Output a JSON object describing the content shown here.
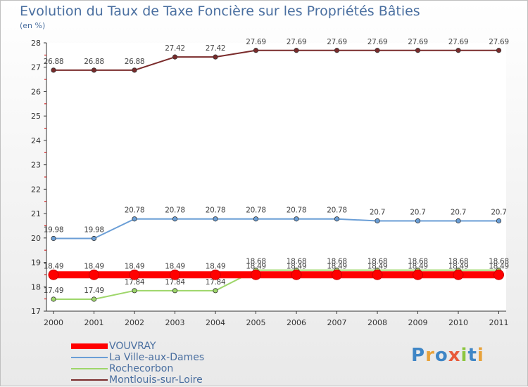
{
  "chart_data": {
    "type": "line",
    "title": "Evolution du Taux de Taxe Foncière sur les Propriétés Bâties",
    "unit_label": "(en %)",
    "x": [
      "2000",
      "2001",
      "2002",
      "2003",
      "2004",
      "2005",
      "2006",
      "2007",
      "2008",
      "2009",
      "2010",
      "2011"
    ],
    "ylim": [
      17,
      28
    ],
    "yticks": [
      17,
      18,
      19,
      20,
      21,
      22,
      23,
      24,
      25,
      26,
      27,
      28
    ],
    "series": [
      {
        "name": "Montlouis-sur-Loire",
        "color": "#7a2b2b",
        "values": [
          26.88,
          26.88,
          26.88,
          27.42,
          27.42,
          27.69,
          27.69,
          27.69,
          27.69,
          27.69,
          27.69,
          27.69
        ],
        "labels": [
          "26.88",
          "26.88",
          "26.88",
          "27.42",
          "27.42",
          "27.69",
          "27.69",
          "27.69",
          "27.69",
          "27.69",
          "27.69",
          "27.69"
        ]
      },
      {
        "name": "La Ville-aux-Dames",
        "color": "#6a9ed6",
        "values": [
          19.98,
          19.98,
          20.78,
          20.78,
          20.78,
          20.78,
          20.78,
          20.78,
          20.7,
          20.7,
          20.7,
          20.7
        ],
        "labels": [
          "19.98",
          "19.98",
          "20.78",
          "20.78",
          "20.78",
          "20.78",
          "20.78",
          "20.78",
          "20.7",
          "20.7",
          "20.7",
          "20.7"
        ]
      },
      {
        "name": "Rochecorbon",
        "color": "#9ed66a",
        "values": [
          17.49,
          17.49,
          17.84,
          17.84,
          17.84,
          18.68,
          18.68,
          18.68,
          18.68,
          18.68,
          18.68,
          18.68
        ],
        "labels": [
          "17.49",
          "17.49",
          "17.84",
          "17.84",
          "17.84",
          "18.68",
          "18.68",
          "18.68",
          "18.68",
          "18.68",
          "18.68",
          "18.68"
        ]
      },
      {
        "name": "VOUVRAY",
        "color": "#ff0000",
        "values": [
          18.49,
          18.49,
          18.49,
          18.49,
          18.49,
          18.49,
          18.49,
          18.49,
          18.49,
          18.49,
          18.49,
          18.49
        ],
        "labels": [
          "18.49",
          "18.49",
          "18.49",
          "18.49",
          "18.49",
          "18.49",
          "18.49",
          "18.49",
          "18.49",
          "18.49",
          "18.49",
          "18.49"
        ]
      }
    ],
    "legend": [
      {
        "name": "VOUVRAY",
        "color": "#ff0000"
      },
      {
        "name": "La Ville-aux-Dames",
        "color": "#6a9ed6"
      },
      {
        "name": "Rochecorbon",
        "color": "#9ed66a"
      },
      {
        "name": "Montlouis-sur-Loire",
        "color": "#7a2b2b"
      }
    ]
  },
  "brand": {
    "logo_text": "Proxiti"
  }
}
